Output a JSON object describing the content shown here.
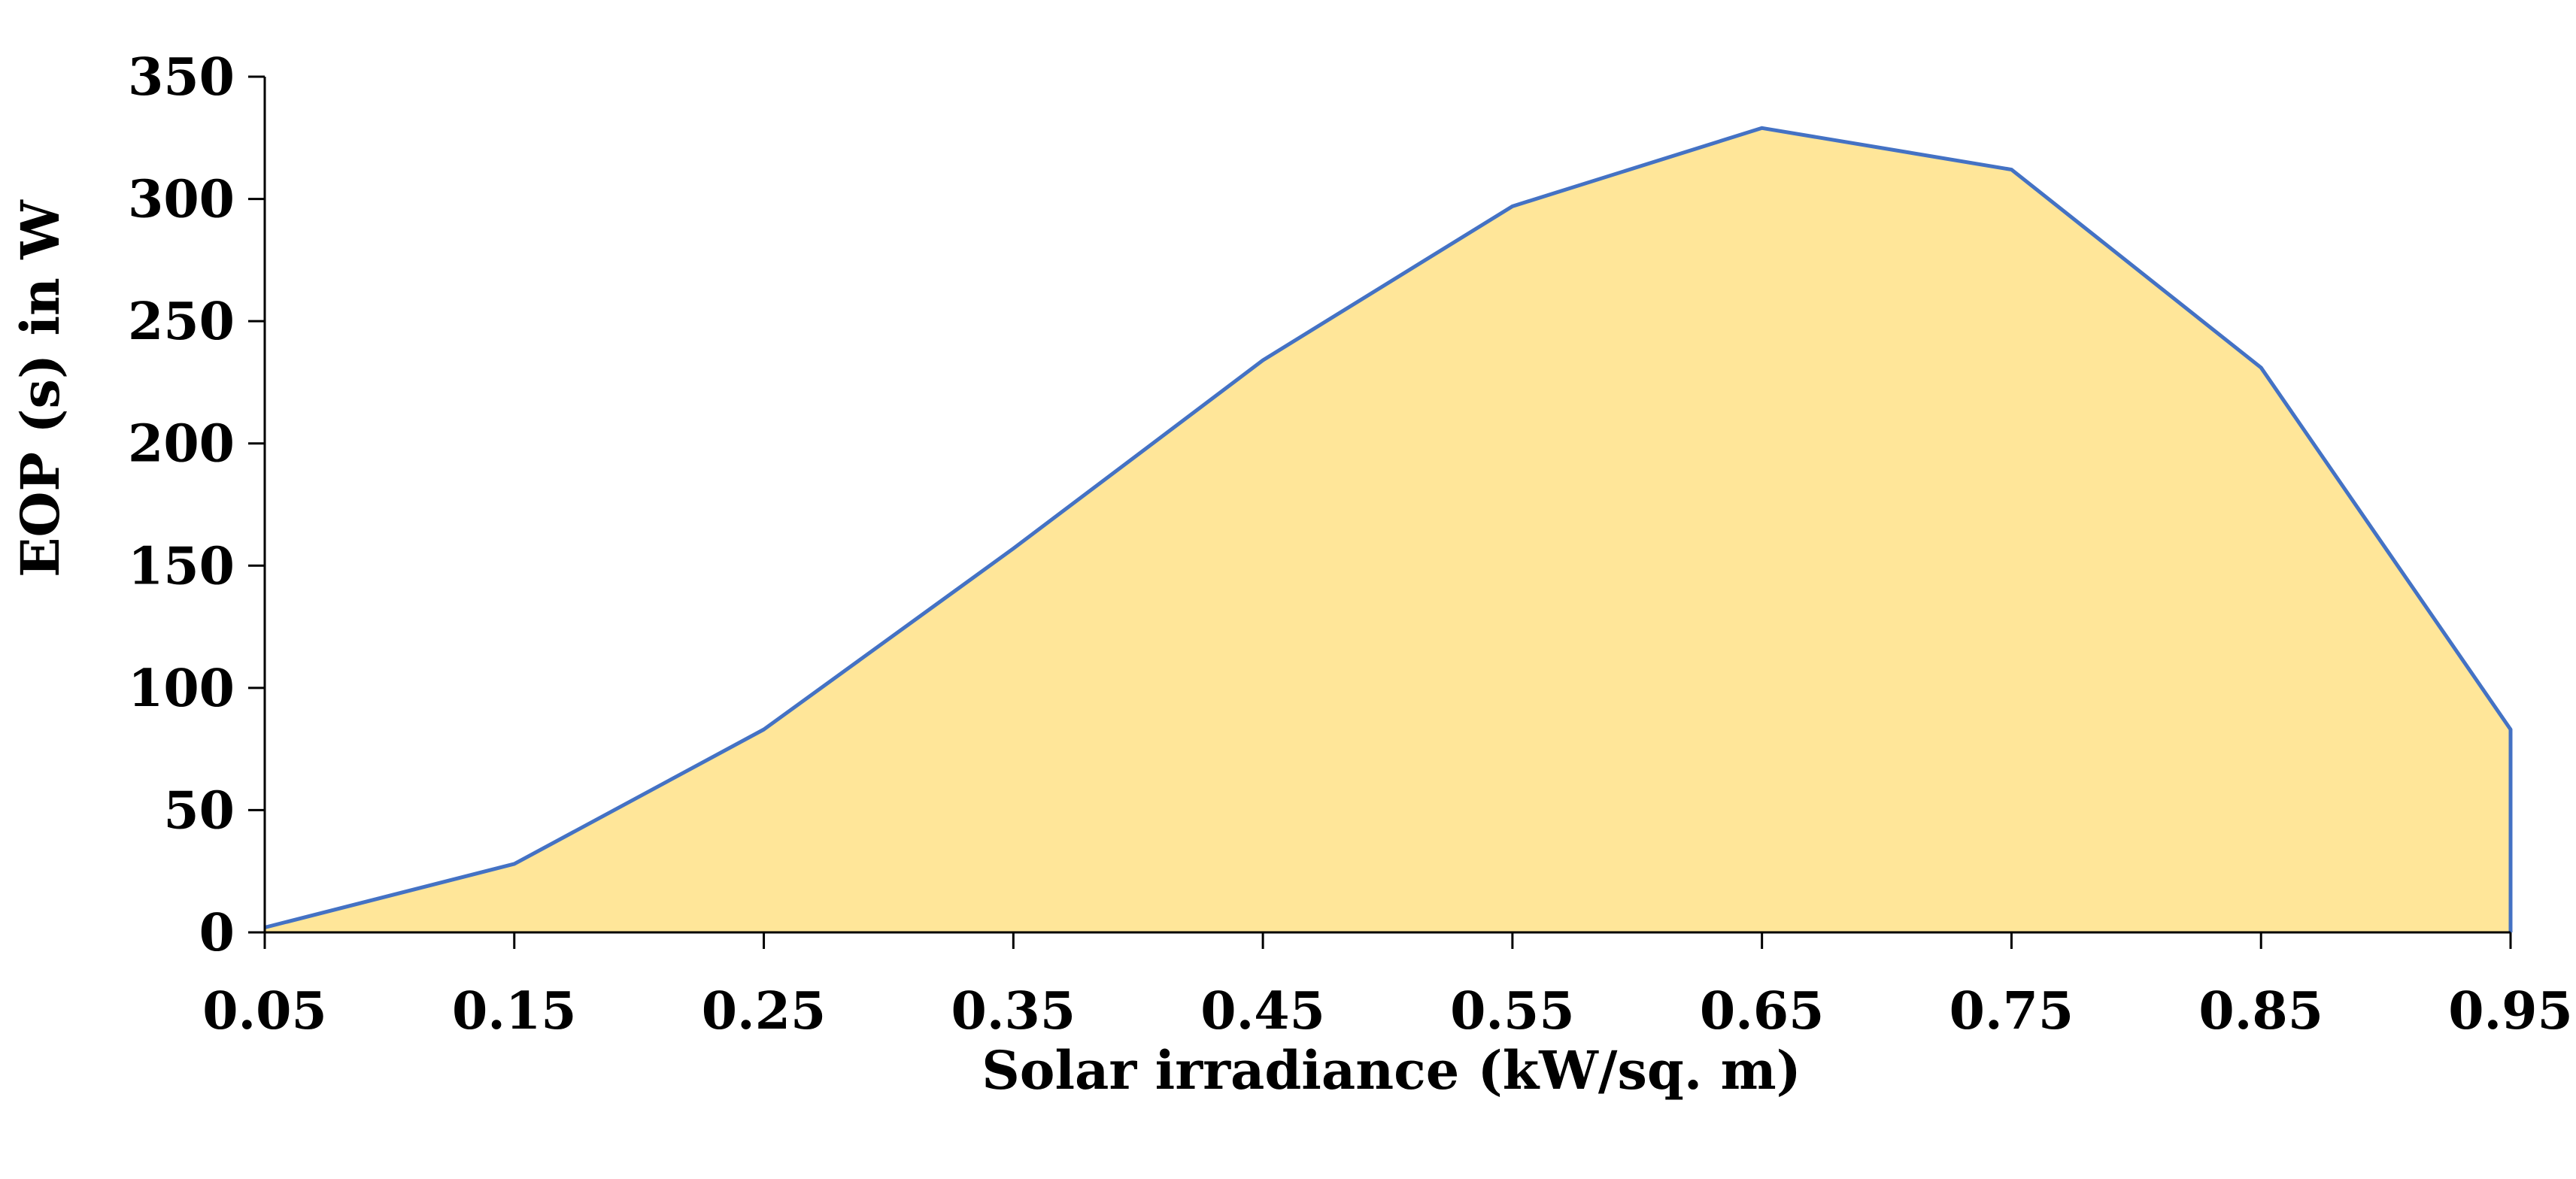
{
  "chart_data": {
    "type": "area",
    "title": "",
    "xlabel": "Solar irradiance (kW/sq. m)",
    "ylabel": "EOP (s) in W",
    "x": [
      0.05,
      0.15,
      0.25,
      0.35,
      0.45,
      0.55,
      0.65,
      0.75,
      0.85,
      0.95
    ],
    "x_tick_labels": [
      "0.05",
      "0.15",
      "0.25",
      "0.35",
      "0.45",
      "0.55",
      "0.65",
      "0.75",
      "0.85",
      "0.95"
    ],
    "series": [
      {
        "name": "EOP (s)",
        "values": [
          2,
          28,
          83,
          157,
          234,
          297,
          329,
          312,
          231,
          83
        ]
      }
    ],
    "xlim": [
      0.05,
      0.95
    ],
    "ylim": [
      0,
      350
    ],
    "y_ticks": [
      0,
      50,
      100,
      150,
      200,
      250,
      300,
      350
    ],
    "y_tick_labels": [
      "0",
      "50",
      "100",
      "150",
      "200",
      "250",
      "300",
      "350"
    ],
    "grid": false,
    "legend": "none",
    "colors": {
      "fill": "#FFE699",
      "line": "#4472C4",
      "axis": "#000000"
    }
  }
}
